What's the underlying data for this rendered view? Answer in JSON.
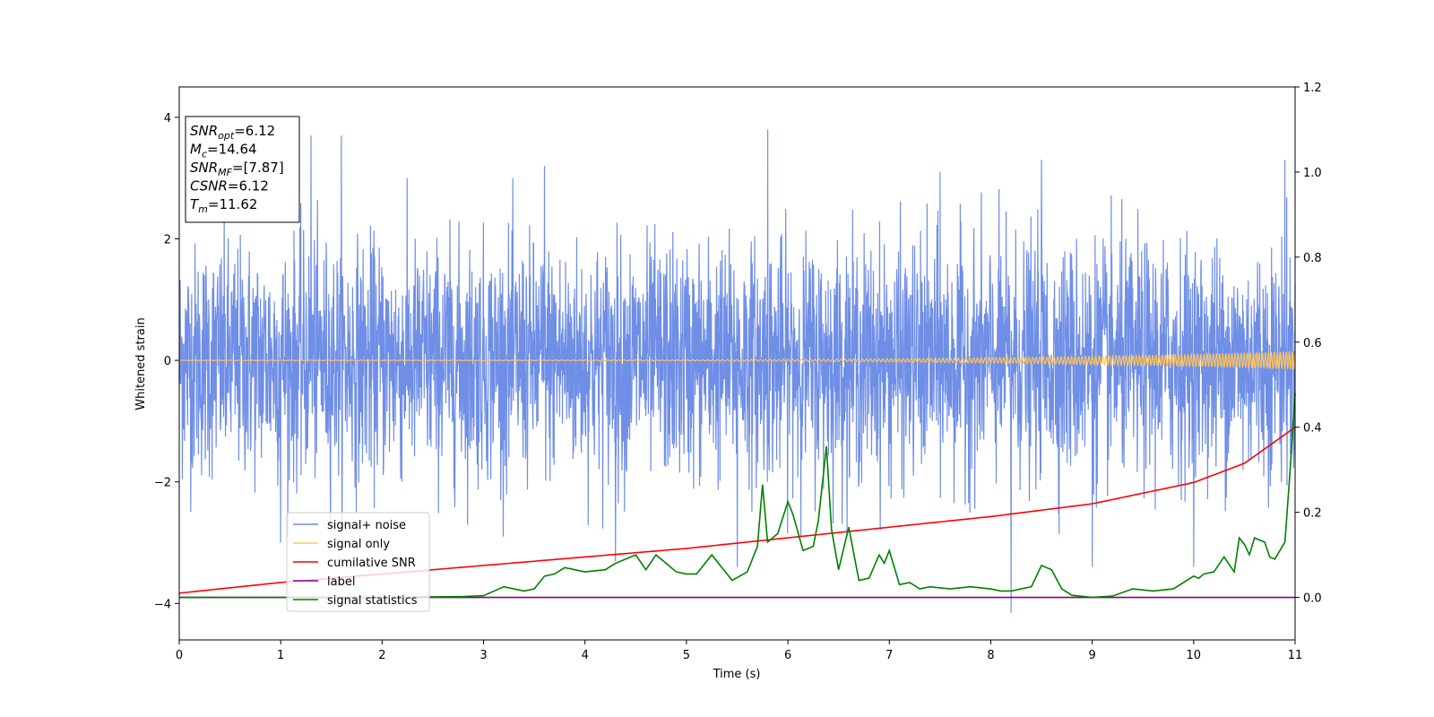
{
  "chart_data": {
    "type": "line",
    "xlabel": "Time (s)",
    "ylabel": "Whitened strain",
    "xlim": [
      0,
      11
    ],
    "ylim_left": [
      -4.6,
      4.5
    ],
    "ylim_right": [
      -0.1,
      1.2
    ],
    "x_ticks": [
      "0",
      "1",
      "2",
      "3",
      "4",
      "5",
      "6",
      "7",
      "8",
      "9",
      "10",
      "11"
    ],
    "y_ticks_left": [
      "−4",
      "−2",
      "0",
      "2",
      "4"
    ],
    "y_ticks_right": [
      "0.0",
      "0.2",
      "0.4",
      "0.6",
      "0.8",
      "1.0",
      "1.2"
    ],
    "grid": false,
    "legend_position": "lower-left",
    "series": [
      {
        "name": "signal+ noise",
        "axis": "left",
        "color": "#6f8ee6",
        "style": "noise",
        "sigma": 1.0,
        "peak_high": [
          [
            1.3,
            3.7
          ],
          [
            1.6,
            3.7
          ],
          [
            3.6,
            3.2
          ],
          [
            5.8,
            3.8
          ],
          [
            7.5,
            3.1
          ],
          [
            8.5,
            3.3
          ],
          [
            10.9,
            3.3
          ]
        ],
        "peak_low": [
          [
            1.0,
            -3.0
          ],
          [
            4.3,
            -3.3
          ],
          [
            5.5,
            -3.4
          ],
          [
            8.2,
            -4.15
          ],
          [
            9.0,
            -3.4
          ],
          [
            10.0,
            -3.4
          ]
        ]
      },
      {
        "name": "signal only",
        "axis": "left",
        "color": "#ffc35a",
        "style": "chirp",
        "amplitude_start": 0.003,
        "amplitude_end": 0.15
      },
      {
        "name": "cumilative SNR",
        "axis": "right",
        "color": "#ff0000",
        "x": [
          0,
          1,
          2,
          3,
          4,
          5,
          6,
          7,
          8,
          9,
          10,
          10.5,
          11
        ],
        "y": [
          0.01,
          0.035,
          0.055,
          0.075,
          0.095,
          0.115,
          0.14,
          0.165,
          0.19,
          0.22,
          0.27,
          0.315,
          0.4
        ]
      },
      {
        "name": "label",
        "axis": "right",
        "color": "#800080",
        "x": [
          0,
          11
        ],
        "y": [
          0.0,
          0.0
        ]
      },
      {
        "name": "signal statistics",
        "axis": "right",
        "color": "#008000",
        "x": [
          0,
          1,
          2,
          2.8,
          3.0,
          3.2,
          3.4,
          3.5,
          3.6,
          3.7,
          3.8,
          3.9,
          4.0,
          4.2,
          4.3,
          4.5,
          4.6,
          4.7,
          4.9,
          5.0,
          5.1,
          5.25,
          5.35,
          5.45,
          5.6,
          5.7,
          5.75,
          5.8,
          5.9,
          6.0,
          6.05,
          6.15,
          6.25,
          6.3,
          6.38,
          6.43,
          6.5,
          6.6,
          6.7,
          6.8,
          6.9,
          6.95,
          7.0,
          7.1,
          7.2,
          7.3,
          7.4,
          7.6,
          7.8,
          8.0,
          8.1,
          8.2,
          8.3,
          8.4,
          8.5,
          8.6,
          8.7,
          8.8,
          9.0,
          9.2,
          9.4,
          9.6,
          9.8,
          10.0,
          10.05,
          10.1,
          10.2,
          10.3,
          10.4,
          10.45,
          10.5,
          10.55,
          10.6,
          10.7,
          10.75,
          10.8,
          10.9,
          10.95,
          11.0
        ],
        "y": [
          0.0,
          0.0,
          0.0,
          0.002,
          0.004,
          0.025,
          0.015,
          0.02,
          0.05,
          0.055,
          0.07,
          0.065,
          0.06,
          0.065,
          0.08,
          0.1,
          0.065,
          0.1,
          0.06,
          0.055,
          0.055,
          0.1,
          0.07,
          0.04,
          0.06,
          0.12,
          0.265,
          0.13,
          0.15,
          0.225,
          0.195,
          0.11,
          0.12,
          0.18,
          0.355,
          0.16,
          0.065,
          0.165,
          0.04,
          0.045,
          0.1,
          0.08,
          0.11,
          0.03,
          0.035,
          0.02,
          0.025,
          0.02,
          0.025,
          0.02,
          0.015,
          0.015,
          0.02,
          0.025,
          0.075,
          0.065,
          0.02,
          0.005,
          0.0,
          0.003,
          0.02,
          0.015,
          0.02,
          0.05,
          0.045,
          0.055,
          0.06,
          0.095,
          0.06,
          0.14,
          0.125,
          0.1,
          0.14,
          0.13,
          0.095,
          0.09,
          0.13,
          0.295,
          0.48
        ]
      }
    ],
    "annotation": {
      "lines": [
        {
          "main": "SNR",
          "sub": "opt",
          "value": "=6.12"
        },
        {
          "main": "M",
          "sub": "c",
          "value": "=14.64"
        },
        {
          "main": "SNR",
          "sub": "MF",
          "value": "=[7.87]"
        },
        {
          "main": "CSNR",
          "sub": "",
          "value": "=6.12"
        },
        {
          "main": "T",
          "sub": "m",
          "value": "=11.62"
        }
      ]
    }
  }
}
